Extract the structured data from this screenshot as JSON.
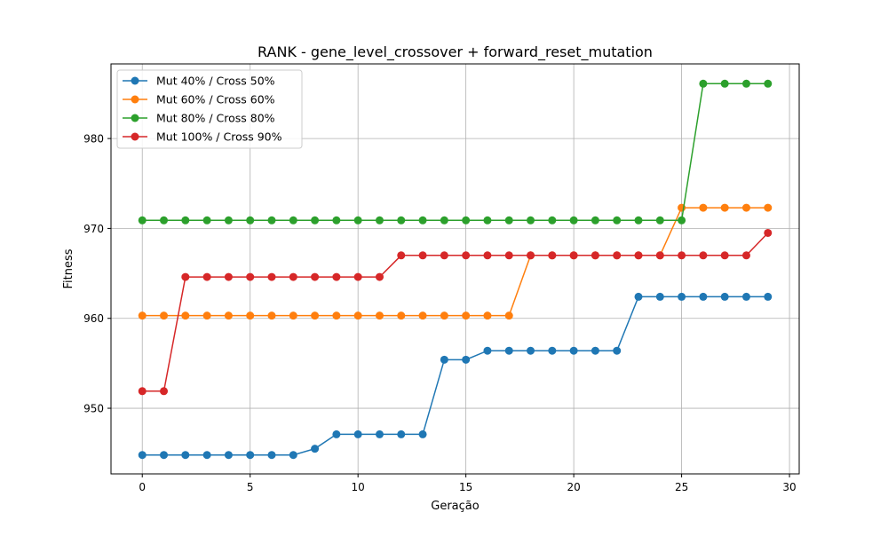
{
  "chart_data": {
    "type": "line",
    "title": "RANK - gene_level_crossover + forward_reset_mutation",
    "xlabel": "Geração",
    "ylabel": "Fitness",
    "xlim": [
      -1.45,
      30.45
    ],
    "ylim": [
      942.7,
      988.3
    ],
    "xticks": [
      0,
      5,
      10,
      15,
      20,
      25,
      30
    ],
    "yticks": [
      950,
      960,
      970,
      980
    ],
    "grid": true,
    "legend_position": "top-left",
    "x": [
      0,
      1,
      2,
      3,
      4,
      5,
      6,
      7,
      8,
      9,
      10,
      11,
      12,
      13,
      14,
      15,
      16,
      17,
      18,
      19,
      20,
      21,
      22,
      23,
      24,
      25,
      26,
      27,
      28,
      29
    ],
    "series": [
      {
        "name": "Mut 40% / Cross 50%",
        "color": "#1f77b4",
        "values": [
          944.8,
          944.8,
          944.8,
          944.8,
          944.8,
          944.8,
          944.8,
          944.8,
          945.5,
          947.1,
          947.1,
          947.1,
          947.1,
          947.1,
          955.4,
          955.4,
          956.4,
          956.4,
          956.4,
          956.4,
          956.4,
          956.4,
          956.4,
          962.4,
          962.4,
          962.4,
          962.4,
          962.4,
          962.4,
          962.4
        ]
      },
      {
        "name": "Mut 60% / Cross 60%",
        "color": "#ff7f0e",
        "values": [
          960.3,
          960.3,
          960.3,
          960.3,
          960.3,
          960.3,
          960.3,
          960.3,
          960.3,
          960.3,
          960.3,
          960.3,
          960.3,
          960.3,
          960.3,
          960.3,
          960.3,
          960.3,
          967.0,
          967.0,
          967.0,
          967.0,
          967.0,
          967.0,
          967.0,
          972.3,
          972.3,
          972.3,
          972.3,
          972.3
        ]
      },
      {
        "name": "Mut 80% / Cross 80%",
        "color": "#2ca02c",
        "values": [
          970.9,
          970.9,
          970.9,
          970.9,
          970.9,
          970.9,
          970.9,
          970.9,
          970.9,
          970.9,
          970.9,
          970.9,
          970.9,
          970.9,
          970.9,
          970.9,
          970.9,
          970.9,
          970.9,
          970.9,
          970.9,
          970.9,
          970.9,
          970.9,
          970.9,
          970.9,
          986.1,
          986.1,
          986.1,
          986.1
        ]
      },
      {
        "name": "Mut 100% / Cross 90%",
        "color": "#d62728",
        "values": [
          951.9,
          951.9,
          964.6,
          964.6,
          964.6,
          964.6,
          964.6,
          964.6,
          964.6,
          964.6,
          964.6,
          964.6,
          967.0,
          967.0,
          967.0,
          967.0,
          967.0,
          967.0,
          967.0,
          967.0,
          967.0,
          967.0,
          967.0,
          967.0,
          967.0,
          967.0,
          967.0,
          967.0,
          967.0,
          969.5
        ]
      }
    ]
  }
}
